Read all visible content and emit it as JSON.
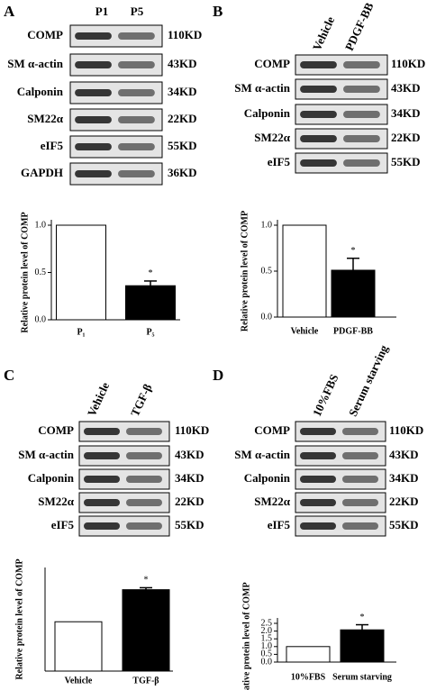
{
  "panels": [
    {
      "letter": "A",
      "lanes": [
        "P1",
        "P5"
      ],
      "rows": [
        {
          "protein": "COMP",
          "size": "110KD"
        },
        {
          "protein": "SM α-actin",
          "size": "43KD"
        },
        {
          "protein": "Calponin",
          "size": "34KD"
        },
        {
          "protein": "SM22α",
          "size": "22KD"
        },
        {
          "protein": "eIF5",
          "size": "55KD"
        },
        {
          "protein": "GAPDH",
          "size": "36KD"
        }
      ]
    },
    {
      "letter": "B",
      "lanes": [
        "Vehicle",
        "PDGF-BB"
      ],
      "rows": [
        {
          "protein": "COMP",
          "size": "110KD"
        },
        {
          "protein": "SM α-actin",
          "size": "43KD"
        },
        {
          "protein": "Calponin",
          "size": "34KD"
        },
        {
          "protein": "SM22α",
          "size": "22KD"
        },
        {
          "protein": "eIF5",
          "size": "55KD"
        }
      ]
    },
    {
      "letter": "C",
      "lanes": [
        "Vehicle",
        "TGF-β"
      ],
      "rows": [
        {
          "protein": "COMP",
          "size": "110KD"
        },
        {
          "protein": "SM α-actin",
          "size": "43KD"
        },
        {
          "protein": "Calponin",
          "size": "34KD"
        },
        {
          "protein": "SM22α",
          "size": "22KD"
        },
        {
          "protein": "eIF5",
          "size": "55KD"
        }
      ]
    },
    {
      "letter": "D",
      "lanes": [
        "10%FBS",
        "Serum starving"
      ],
      "rows": [
        {
          "protein": "COMP",
          "size": "110KD"
        },
        {
          "protein": "SM α-actin",
          "size": "43KD"
        },
        {
          "protein": "Calponin",
          "size": "34KD"
        },
        {
          "protein": "SM22α",
          "size": "22KD"
        },
        {
          "protein": "eIF5",
          "size": "55KD"
        }
      ]
    }
  ],
  "chart_data": [
    {
      "type": "bar",
      "y_label": "Relative protein level of COMP",
      "categories": [
        "P₁",
        "P₅"
      ],
      "values": [
        1.0,
        0.36
      ],
      "errors": [
        0,
        0.05
      ],
      "colors": [
        "#ffffff",
        "#000000"
      ],
      "significance": [
        null,
        "*"
      ],
      "ylim": [
        0,
        1.0
      ],
      "yticks": [
        {
          "value": 0,
          "label": "0.0"
        },
        {
          "value": 0.5,
          "label": "0.5"
        },
        {
          "value": 1,
          "label": "1.0"
        }
      ]
    },
    {
      "type": "bar",
      "y_label": "Relative protein level of COMP",
      "categories": [
        "Vehicle",
        "PDGF-BB"
      ],
      "values": [
        1.0,
        0.51
      ],
      "errors": [
        0,
        0.13
      ],
      "colors": [
        "#ffffff",
        "#000000"
      ],
      "significance": [
        null,
        "*"
      ],
      "ylim": [
        0,
        1.0
      ],
      "yticks": [
        {
          "value": 0,
          "label": "0.0"
        },
        {
          "value": 0.5,
          "label": "0.5"
        },
        {
          "value": 1,
          "label": "1.0"
        }
      ]
    },
    {
      "type": "bar",
      "y_label": "Relative protein level of COMP",
      "categories": [
        "Vehicle",
        "TGF-β"
      ],
      "values": [
        1.0,
        1.65
      ],
      "errors": [
        0,
        0.04
      ],
      "colors": [
        "#ffffff",
        "#000000"
      ],
      "significance": [
        null,
        "*"
      ],
      "ylim": [
        0,
        2.1
      ],
      "yticks": []
    },
    {
      "type": "bar",
      "y_label": "Relative protein level of COMP",
      "categories": [
        "10%FBS",
        "Serum starving"
      ],
      "values": [
        1.0,
        2.08
      ],
      "errors": [
        0,
        0.33
      ],
      "colors": [
        "#ffffff",
        "#000000"
      ],
      "significance": [
        null,
        "*"
      ],
      "ylim": [
        0,
        2.5
      ],
      "yticks": [
        {
          "value": 0,
          "label": "0.0"
        },
        {
          "value": 0.5,
          "label": "0.5"
        },
        {
          "value": 1,
          "label": "1.0"
        },
        {
          "value": 1.5,
          "label": "1.5"
        },
        {
          "value": 2,
          "label": "2.0"
        },
        {
          "value": 2.5,
          "label": "2.5"
        }
      ]
    }
  ]
}
